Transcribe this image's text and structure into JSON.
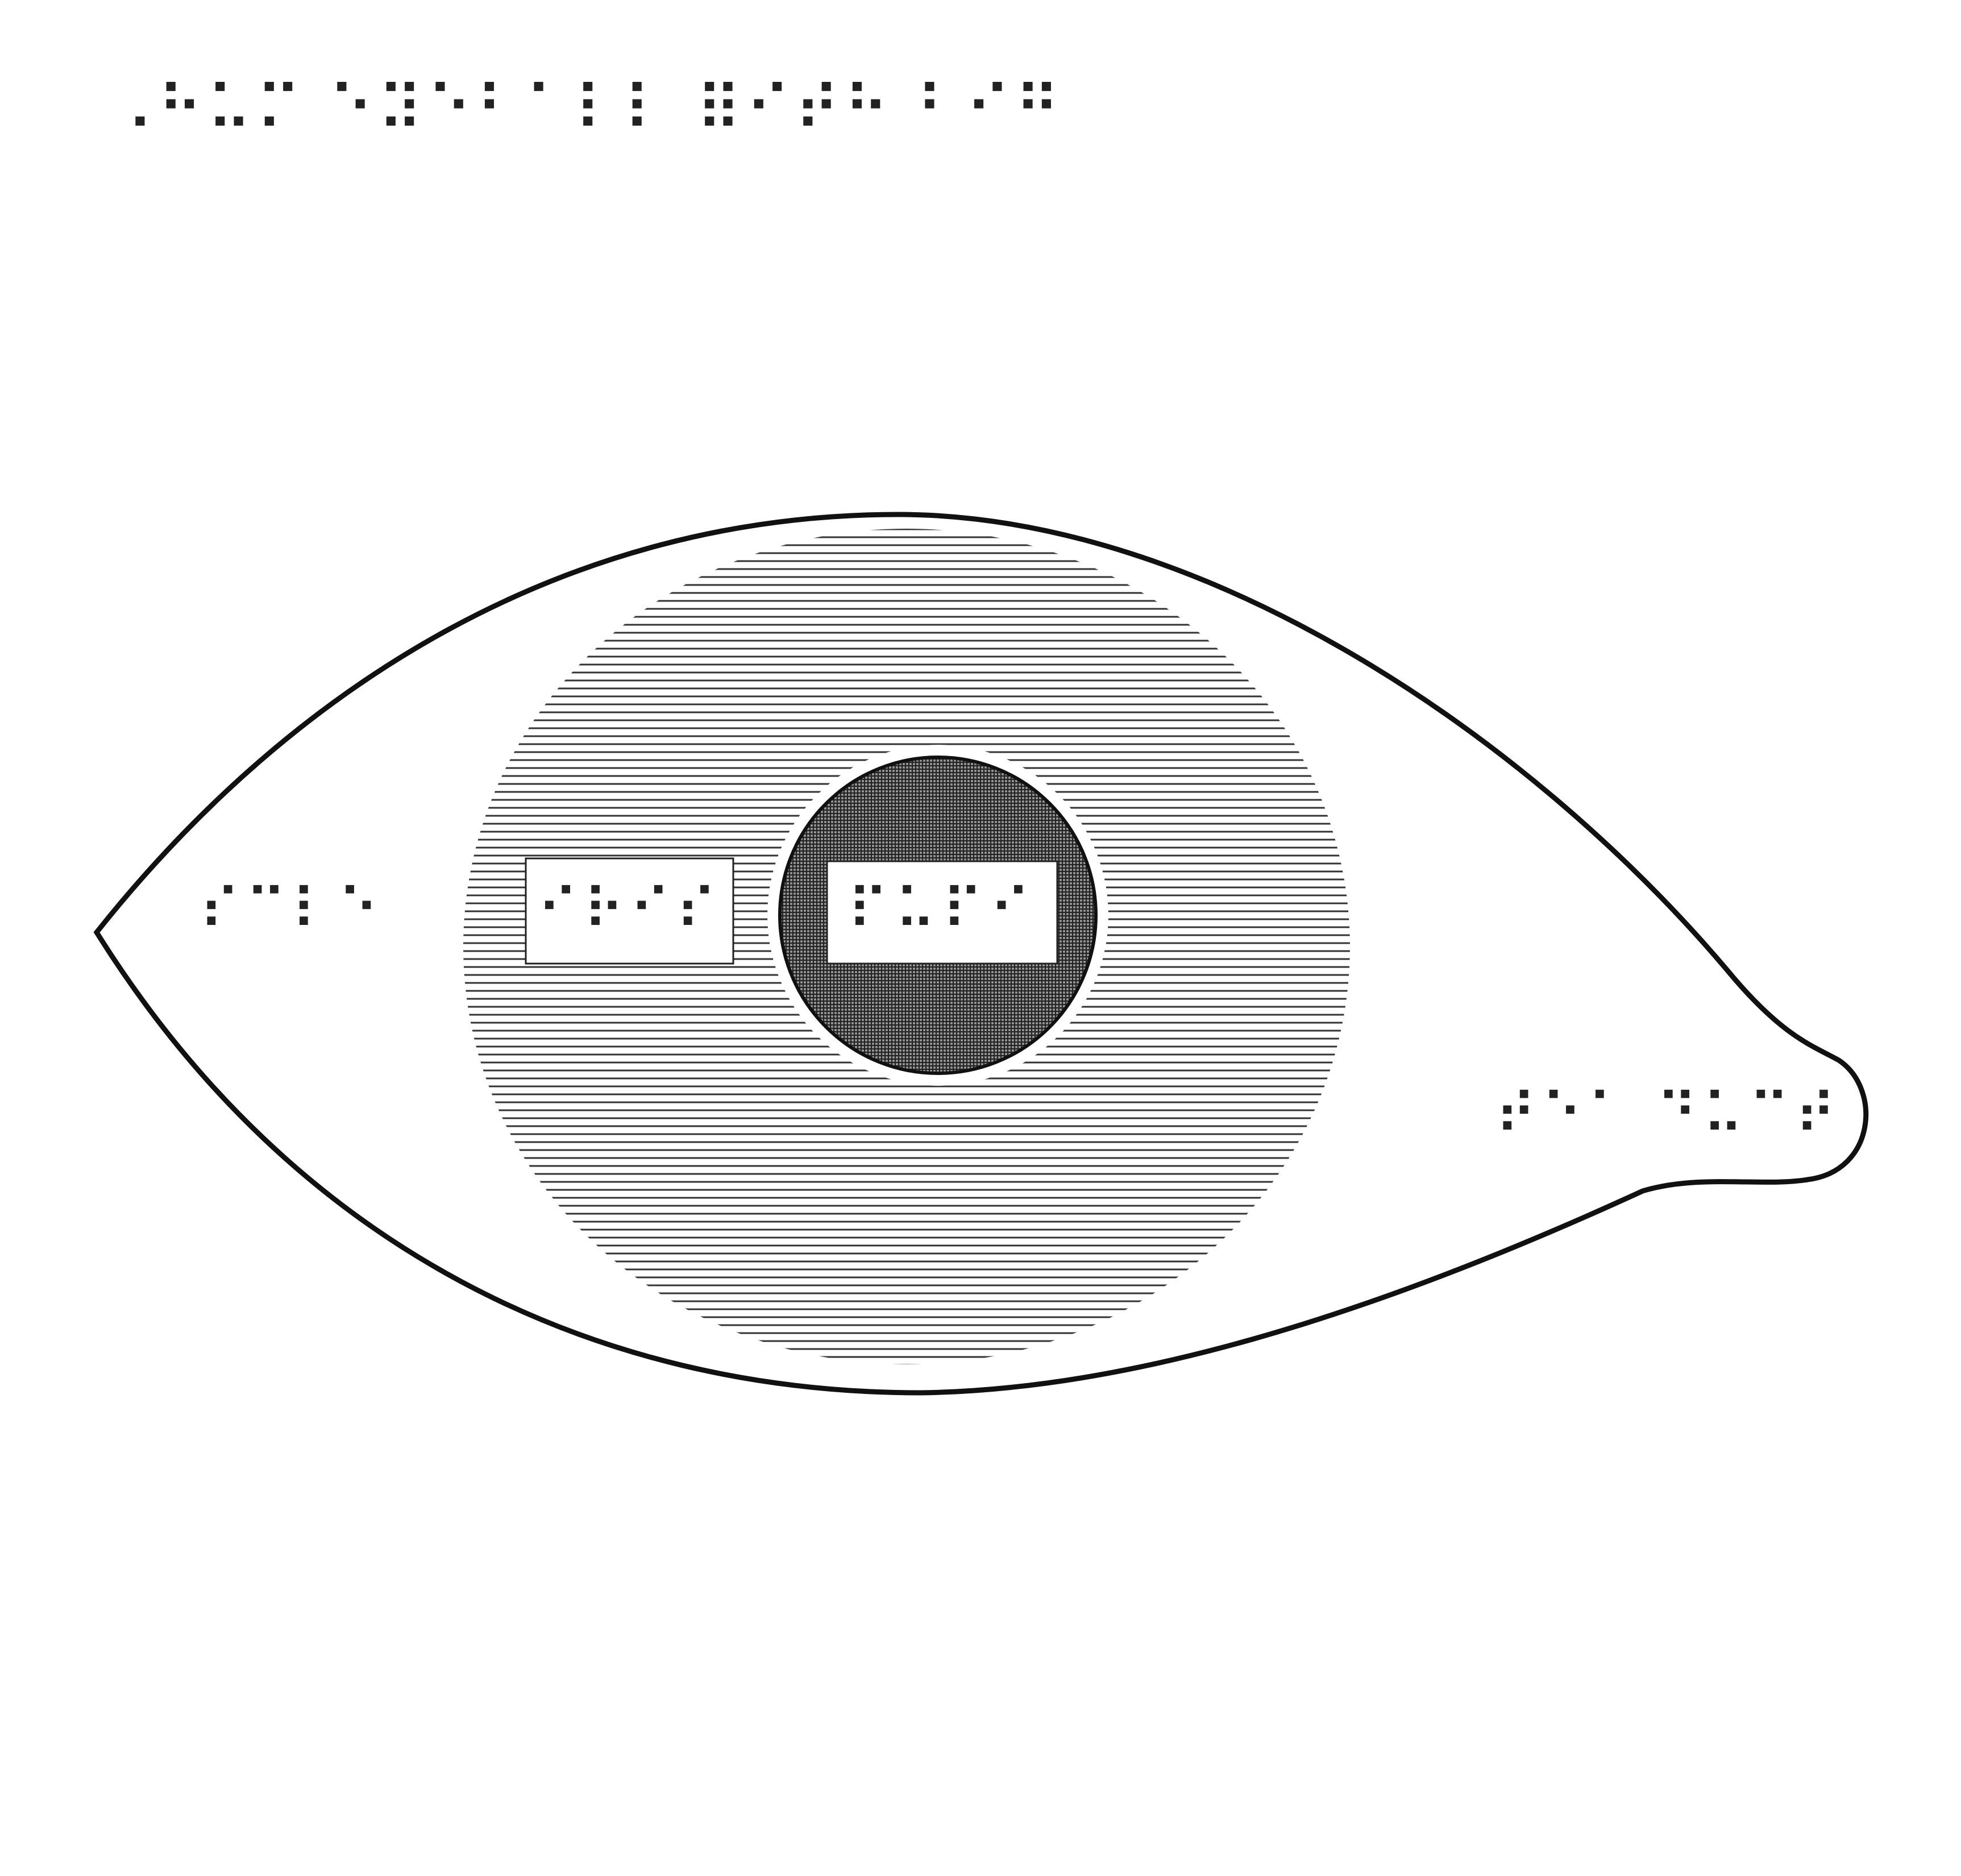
{
  "title": {
    "braille": "⠠⠓⠥⠍ ⠑⠽⠑⠃⠁⠇⠇ ⠿⠊⠞⠓ ⠃⠊⠛"
  },
  "labels": {
    "sclera": {
      "braille": "⠎⠉⠇⠑"
    },
    "iris": {
      "braille": "⠊⠗⠊⠎"
    },
    "pupil": {
      "braille": "⠏⠥⠏⠊"
    },
    "tear_duct": {
      "braille": "⠞⠑⠁ ⠙⠥⠉⠞"
    }
  },
  "colors": {
    "outline": "#111111",
    "hatch": "#222222",
    "background": "#ffffff"
  }
}
